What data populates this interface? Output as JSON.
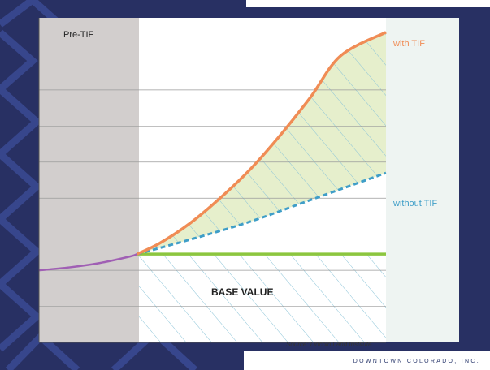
{
  "slide": {
    "footer": "DOWNTOWN COLORADO, INC.",
    "colors": {
      "background_navy": "#283063",
      "pattern": "#33408a",
      "pre_tif_band": "#d2cecd",
      "tif_increment_fill": "#e6efcc",
      "right_panel": "#eef4f2"
    }
  },
  "chart_data": {
    "type": "line",
    "title": "",
    "xlabel": "",
    "ylabel": "",
    "regions": [
      {
        "label": "Pre-TIF",
        "x_start": 0,
        "x_end": 3.25
      },
      {
        "label": "BASE VALUE",
        "y_start": 0,
        "y_end": 2.5
      }
    ],
    "xlim": [
      0,
      11.5
    ],
    "ylim": [
      0,
      9
    ],
    "grid": true,
    "series": [
      {
        "name": "",
        "color": "#a05fb4",
        "style": "solid",
        "x": [
          0,
          1,
          2,
          3,
          3.25
        ],
        "y": [
          2.0,
          2.08,
          2.2,
          2.38,
          2.45
        ]
      },
      {
        "name": "with TIF",
        "color": "#f08c55",
        "style": "solid",
        "x": [
          3.25,
          4,
          5,
          6,
          7,
          8,
          9,
          10,
          11.5
        ],
        "y": [
          2.45,
          2.75,
          3.3,
          4.0,
          4.8,
          5.75,
          6.8,
          7.95,
          8.6
        ]
      },
      {
        "name": "without TIF",
        "color": "#3f9ec8",
        "style": "dashed",
        "x": [
          3.25,
          5,
          7,
          9,
          11.5
        ],
        "y": [
          2.45,
          2.85,
          3.35,
          3.95,
          4.7
        ]
      },
      {
        "name": "",
        "color": "#8cc63f",
        "style": "solid",
        "x": [
          3.25,
          11.5
        ],
        "y": [
          2.45,
          2.45
        ]
      }
    ],
    "annotations": [
      {
        "text": "with TIF"
      },
      {
        "text": "without TIF"
      },
      {
        "text": "BASE VALUE"
      },
      {
        "text": "Pre-TIF"
      },
      {
        "text": "Source: Lincoln Land Institute"
      }
    ]
  }
}
